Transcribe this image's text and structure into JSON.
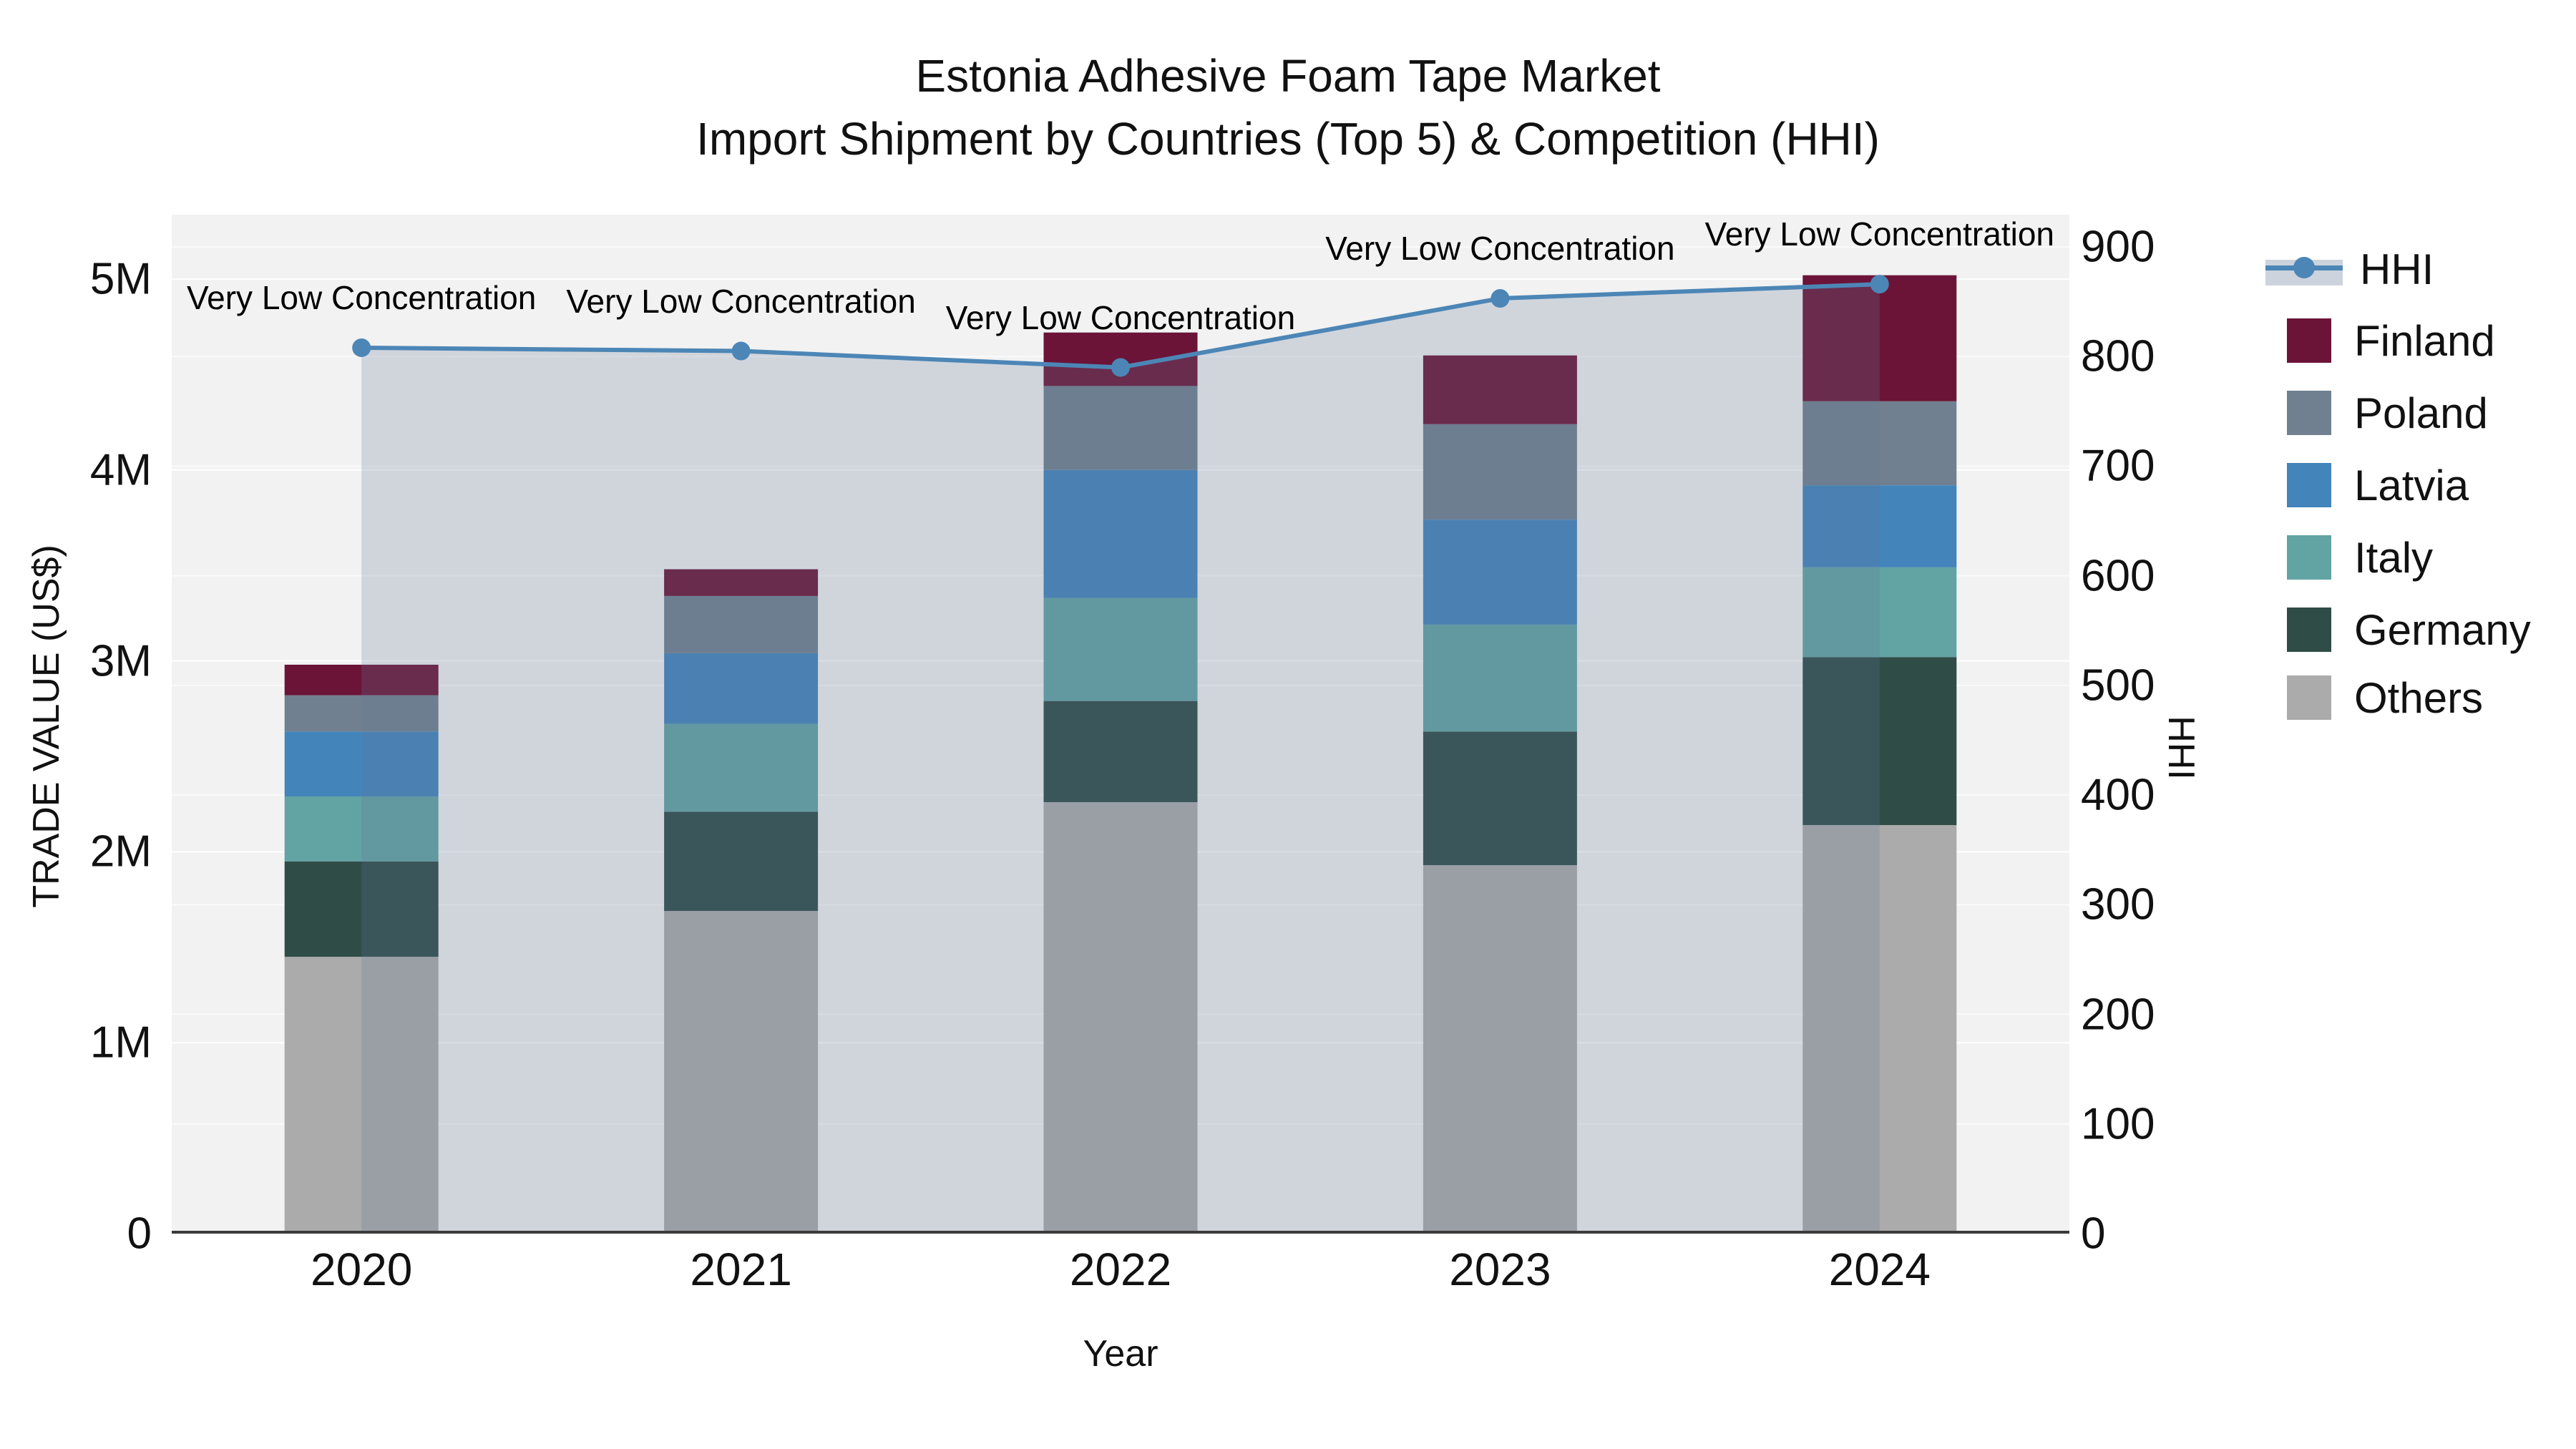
{
  "title": {
    "line1": "Estonia Adhesive Foam Tape Market",
    "line2": "Import Shipment by Countries (Top 5) & Competition (HHI)"
  },
  "axes": {
    "x_label": "Year",
    "y_left_label": "TRADE VALUE (US$)",
    "y_right_label": "HHI",
    "y_left_ticks": [
      "0",
      "1M",
      "2M",
      "3M",
      "4M",
      "5M"
    ],
    "y_right_ticks": [
      "0",
      "100",
      "200",
      "300",
      "400",
      "500",
      "600",
      "700",
      "800",
      "900"
    ]
  },
  "annotation": {
    "text": "Very Low Concentration"
  },
  "chart_data": {
    "type": "bar+line",
    "title": "Estonia Adhesive Foam Tape Market — Import Shipment by Countries (Top 5) & Competition (HHI)",
    "categories": [
      "2020",
      "2021",
      "2022",
      "2023",
      "2024"
    ],
    "xlabel": "Year",
    "ylabel_left": "TRADE VALUE (US$)",
    "ylabel_right": "HHI",
    "y_left_range_million_usd": [
      0,
      5
    ],
    "y_right_range": [
      0,
      900
    ],
    "grid": true,
    "legend_position": "right",
    "stack_order_bottom_to_top": [
      "Others",
      "Germany",
      "Italy",
      "Latvia",
      "Poland",
      "Finland"
    ],
    "bar_unit": "million US$",
    "bar_series": [
      {
        "name": "Finland",
        "color": "#6B1437",
        "values": [
          0.16,
          0.14,
          0.28,
          0.36,
          0.66
        ]
      },
      {
        "name": "Poland",
        "color": "#708090",
        "values": [
          0.19,
          0.3,
          0.44,
          0.5,
          0.44
        ]
      },
      {
        "name": "Latvia",
        "color": "#4384BB",
        "values": [
          0.34,
          0.37,
          0.67,
          0.55,
          0.43
        ]
      },
      {
        "name": "Italy",
        "color": "#62A3A3",
        "values": [
          0.34,
          0.46,
          0.54,
          0.56,
          0.47
        ]
      },
      {
        "name": "Germany",
        "color": "#2F4C47",
        "values": [
          0.5,
          0.52,
          0.53,
          0.7,
          0.88
        ]
      },
      {
        "name": "Others",
        "color": "#ABABAB",
        "values": [
          1.45,
          1.69,
          2.26,
          1.93,
          2.14
        ]
      }
    ],
    "bar_totals_million_usd": [
      2.98,
      3.48,
      4.72,
      4.6,
      5.02
    ],
    "line_series": {
      "name": "HHI",
      "color": "#4C86B6",
      "fill": "tozeroy",
      "fill_color": "rgba(100,120,150,0.24)",
      "values": [
        808,
        805,
        790,
        853,
        866
      ]
    },
    "annotations": [
      {
        "x": "2020",
        "text": "Very Low Concentration"
      },
      {
        "x": "2021",
        "text": "Very Low Concentration"
      },
      {
        "x": "2022",
        "text": "Very Low Concentration"
      },
      {
        "x": "2023",
        "text": "Very Low Concentration"
      },
      {
        "x": "2024",
        "text": "Very Low Concentration"
      }
    ]
  },
  "legend": {
    "items": [
      {
        "label": "HHI"
      },
      {
        "label": "Finland"
      },
      {
        "label": "Poland"
      },
      {
        "label": "Latvia"
      },
      {
        "label": "Italy"
      },
      {
        "label": "Germany"
      },
      {
        "label": "Others"
      }
    ]
  }
}
